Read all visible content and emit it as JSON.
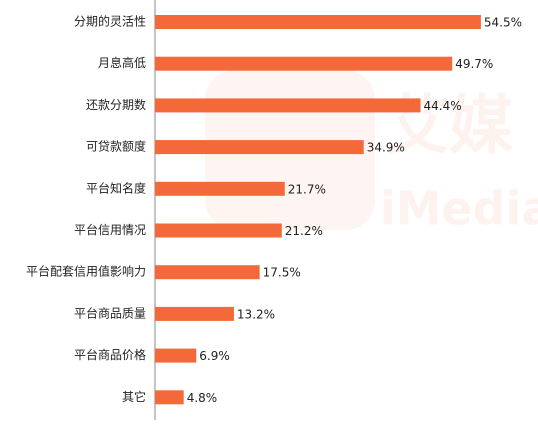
{
  "chart_data": {
    "type": "bar",
    "orientation": "horizontal",
    "watermark": [
      "艾媒",
      "iMedia"
    ],
    "categories": [
      "分期的灵活性",
      "月息高低",
      "还款分期数",
      "可贷款额度",
      "平台知名度",
      "平台信用情况",
      "平台配套信用值影响力",
      "平台商品质量",
      "平台商品价格",
      "其它"
    ],
    "values": [
      54.5,
      49.7,
      44.4,
      34.9,
      21.7,
      21.2,
      17.5,
      13.2,
      6.9,
      4.8
    ],
    "value_labels": [
      "54.5%",
      "49.7%",
      "44.4%",
      "34.9%",
      "21.7%",
      "21.2%",
      "17.5%",
      "13.2%",
      "6.9%",
      "4.8%"
    ],
    "color": "#f4693a"
  }
}
